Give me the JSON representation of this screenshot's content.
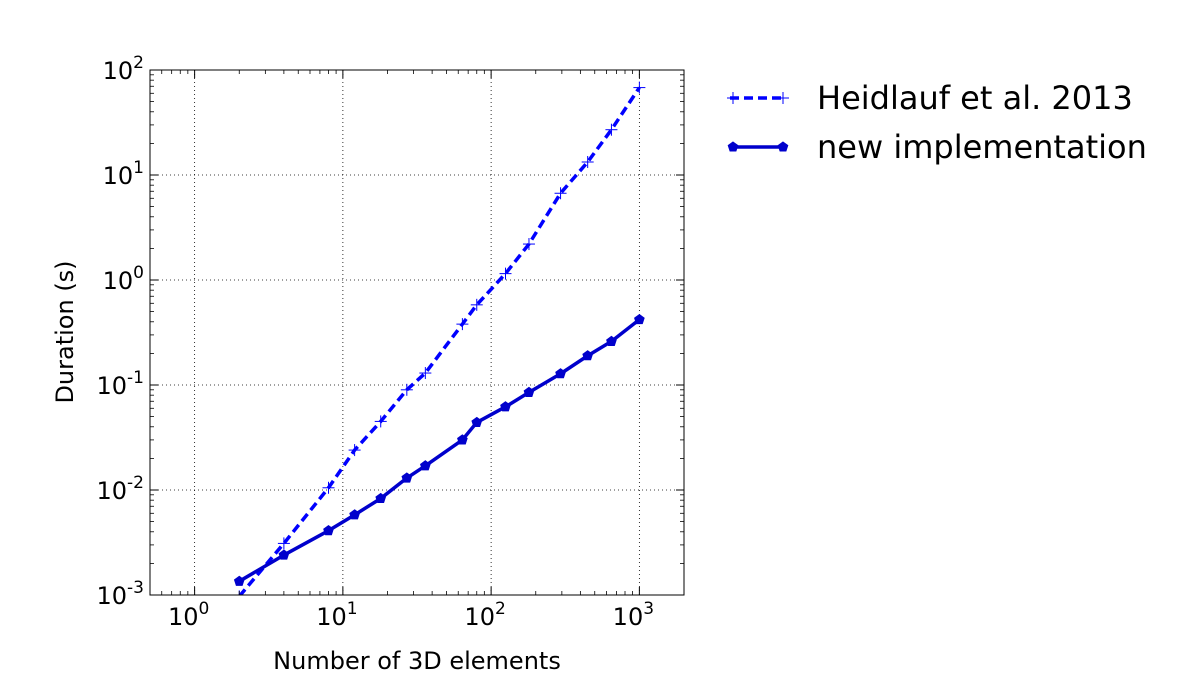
{
  "chart_data": {
    "type": "line",
    "xlabel": "Number of 3D elements",
    "ylabel": "Duration (s)",
    "xscale": "log",
    "yscale": "log",
    "xlim": [
      0.5,
      2000
    ],
    "ylim": [
      0.001,
      100
    ],
    "grid": true,
    "legend_position": "outside-top-right",
    "x_ticks": [
      1,
      10,
      100,
      1000
    ],
    "x_tick_labels": [
      {
        "base": "10",
        "exp": "0"
      },
      {
        "base": "10",
        "exp": "1"
      },
      {
        "base": "10",
        "exp": "2"
      },
      {
        "base": "10",
        "exp": "3"
      }
    ],
    "y_ticks": [
      0.001,
      0.01,
      0.1,
      1,
      10,
      100
    ],
    "y_tick_labels": [
      {
        "base": "10",
        "exp": "-3"
      },
      {
        "base": "10",
        "exp": "-2"
      },
      {
        "base": "10",
        "exp": "-1"
      },
      {
        "base": "10",
        "exp": "0"
      },
      {
        "base": "10",
        "exp": "1"
      },
      {
        "base": "10",
        "exp": "2"
      }
    ],
    "series": [
      {
        "name": "Heidlauf et al. 2013",
        "color": "#0000ff",
        "line_style": "dashed",
        "marker": "plus",
        "x": [
          2,
          4,
          8,
          12,
          18,
          27,
          36,
          64,
          80,
          125,
          180,
          294,
          448,
          648,
          1000
        ],
        "y": [
          0.00097,
          0.0031,
          0.0105,
          0.024,
          0.045,
          0.09,
          0.13,
          0.38,
          0.58,
          1.15,
          2.2,
          6.7,
          13.3,
          27,
          68
        ]
      },
      {
        "name": "new implementation",
        "color": "#0000cc",
        "line_style": "solid",
        "marker": "pentagon",
        "x": [
          2,
          4,
          8,
          12,
          18,
          27,
          36,
          64,
          80,
          125,
          180,
          294,
          448,
          648,
          1000
        ],
        "y": [
          0.00135,
          0.0024,
          0.0041,
          0.0058,
          0.0083,
          0.013,
          0.017,
          0.03,
          0.044,
          0.062,
          0.085,
          0.128,
          0.19,
          0.26,
          0.42
        ]
      }
    ]
  }
}
